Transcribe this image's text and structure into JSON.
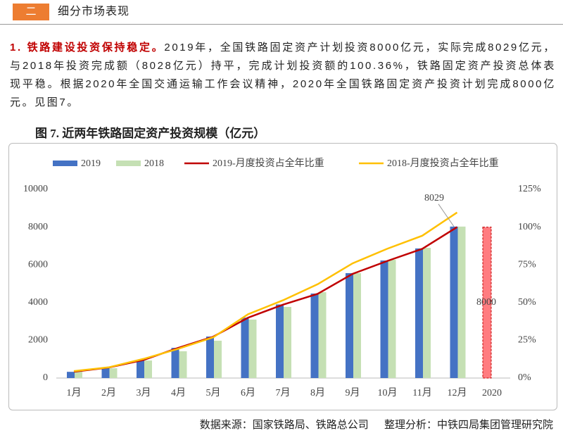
{
  "header": {
    "number": "二",
    "title": "细分市场表现"
  },
  "paragraph": {
    "lead": "1. 铁路建设投资保持稳定。",
    "body": "2019年，全国铁路固定资产计划投资8000亿元，实际完成8029亿元，与2018年投资完成额（8028亿元）持平，完成计划投资额的100.36%，铁路固定资产投资总体表现平稳。根据2020年全国交通运输工作会议精神，2020年全国铁路固定资产投资计划完成8000亿元。见图7。"
  },
  "chart_data": {
    "type": "bar",
    "title": "图 7. 近两年铁路固定资产投资规模（亿元）",
    "categories": [
      "1月",
      "2月",
      "3月",
      "4月",
      "5月",
      "6月",
      "7月",
      "8月",
      "9月",
      "10月",
      "11月",
      "12月"
    ],
    "series": [
      {
        "name": "2019",
        "type": "bar",
        "color": "#4472c4",
        "values": [
          330,
          560,
          970,
          1600,
          2200,
          3200,
          3900,
          4480,
          5560,
          6230,
          6870,
          8029
        ]
      },
      {
        "name": "2018",
        "type": "bar",
        "color": "#c5e0b4",
        "values": [
          340,
          520,
          930,
          1420,
          1980,
          3100,
          3770,
          4550,
          5560,
          6270,
          6900,
          8028
        ]
      },
      {
        "name": "2019-月度投资占全年比重",
        "type": "line",
        "axis": "y2",
        "color": "#c00000",
        "values": [
          4.2,
          7,
          12,
          20,
          27.4,
          40,
          48.6,
          55.8,
          69,
          77.6,
          85.6,
          100
        ]
      },
      {
        "name": "2018-月度投资占全年比重",
        "type": "line",
        "axis": "y2",
        "color": "#ffc000",
        "values": [
          4.6,
          7.1,
          12.7,
          19.4,
          27,
          42.3,
          51.5,
          62.2,
          76,
          85.7,
          94.3,
          109.7
        ]
      }
    ],
    "plan_bar": {
      "category": "2020",
      "value": 8000,
      "color": "#ff7c80"
    },
    "ylim": [
      0,
      10000
    ],
    "yticks": [
      0,
      2000,
      4000,
      6000,
      8000,
      10000
    ],
    "y2lim": [
      0,
      125
    ],
    "y2ticks": [
      {
        "value": 0,
        "label": "0%"
      },
      {
        "value": 25,
        "label": "25%"
      },
      {
        "value": 50,
        "label": "50%"
      },
      {
        "value": 75,
        "label": "75%"
      },
      {
        "value": 100,
        "label": "100%"
      },
      {
        "value": 125,
        "label": "125%"
      }
    ],
    "grid": false
  },
  "source": {
    "left": "数据来源：国家铁路局、铁路总公司",
    "right": "整理分析：中铁四局集团管理研究院"
  }
}
